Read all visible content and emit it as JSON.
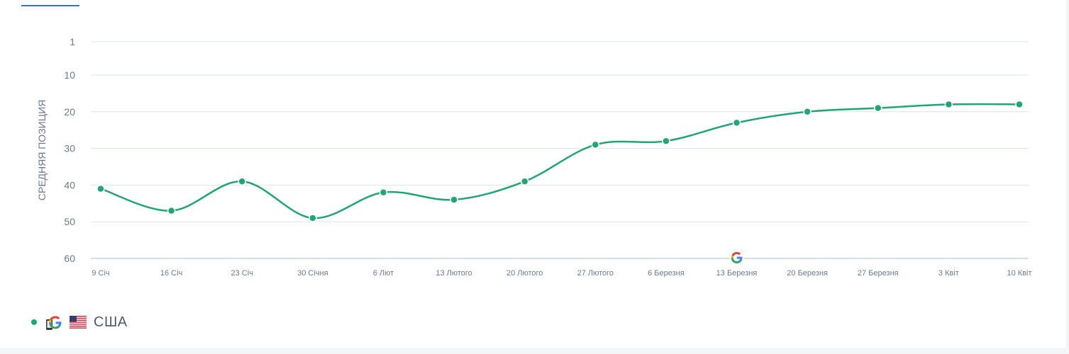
{
  "chart_data": {
    "type": "line",
    "ylabel": "СРЕДНЯЯ ПОЗИЦИЯ",
    "xlabel": "",
    "y_reversed": true,
    "ylim": [
      1,
      60
    ],
    "yticks": [
      "1",
      "10",
      "20",
      "30",
      "40",
      "50",
      "60"
    ],
    "ytick_values": [
      1,
      10,
      20,
      30,
      40,
      50,
      60
    ],
    "categories": [
      "9 Січ",
      "16 Січ",
      "23 Січ",
      "30 Січня",
      "6 Лют",
      "13 Лютого",
      "20 Лютого",
      "27 Лютого",
      "6 Березня",
      "13 Березня",
      "20 Березня",
      "27 Березня",
      "3 Квіт",
      "10 Квіт"
    ],
    "series": [
      {
        "name": "США",
        "color": "#1fa672",
        "values": [
          41,
          47,
          39,
          49,
          42,
          44,
          39,
          29,
          28,
          23,
          20,
          19,
          18,
          18
        ]
      }
    ],
    "grid": true,
    "legend_position": "bottom-left",
    "annotation_icon": "google-g-icon",
    "annotation_category": "13 Березня"
  },
  "legend": {
    "engine_icon": "google-g-icon",
    "country_icon": "us-flag-icon",
    "label": "США"
  },
  "colors": {
    "series": "#1fa672",
    "grid": "#dde3ea",
    "axis_text": "#6b7a90",
    "tab_underline": "#3b6fc9"
  }
}
